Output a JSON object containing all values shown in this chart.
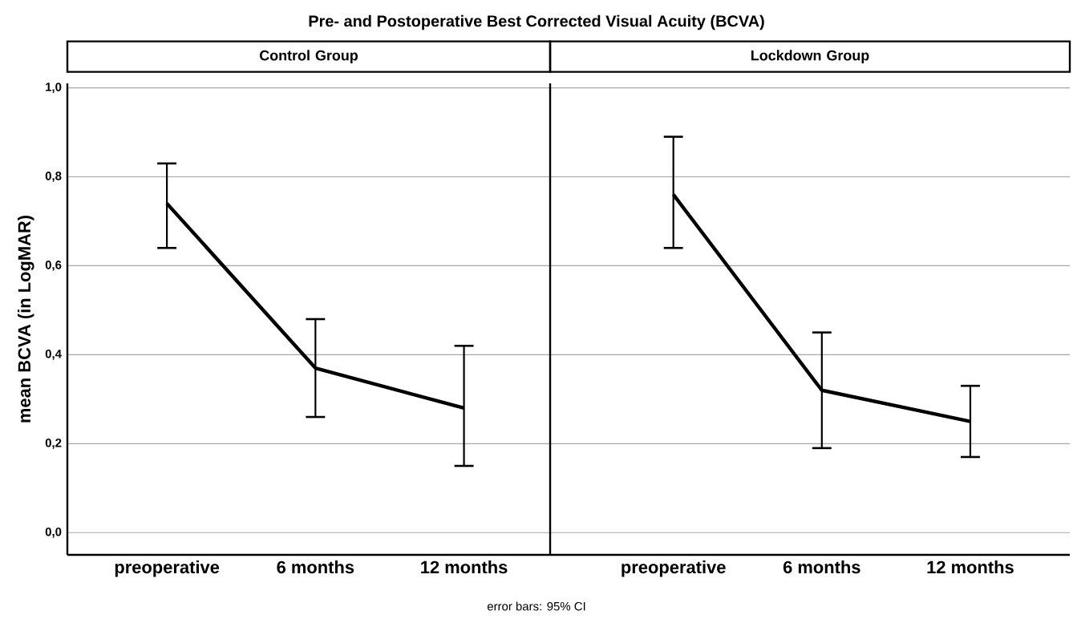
{
  "chart_data": [
    {
      "type": "line",
      "title": "Pre- and Postoperative Best Corrected Visual Acuity (BCVA)",
      "subtitle": "Control Group",
      "ylabel": "mean BCVA (in LogMAR)",
      "categories": [
        "preoperative",
        "6 months",
        "12 months"
      ],
      "series": [
        {
          "color": "#000000",
          "values": [
            0.74,
            0.37,
            0.28
          ],
          "errors": [
            [
              0.64,
              0.83
            ],
            [
              0.26,
              0.48
            ],
            [
              0.15,
              0.42
            ]
          ]
        }
      ],
      "ylim": [
        -0.05,
        1.01
      ],
      "yticks": [
        {
          "value": 0,
          "label": "0,0"
        },
        {
          "value": 0.2,
          "label": "0,2"
        },
        {
          "value": 0.4,
          "label": "0,4"
        },
        {
          "value": 0.6,
          "label": "0,6"
        },
        {
          "value": 0.8,
          "label": "0,8"
        },
        {
          "value": 1.0,
          "label": "1,0"
        }
      ],
      "grid": "y",
      "line_style": "solid",
      "annotations": [
        "error bars: 95% CI"
      ]
    },
    {
      "type": "line",
      "subtitle": "Lockdown Group",
      "categories": [
        "preoperative",
        "6 months",
        "12 months"
      ],
      "series": [
        {
          "color": "#000000",
          "values": [
            0.76,
            0.32,
            0.25
          ],
          "errors": [
            [
              0.64,
              0.89
            ],
            [
              0.19,
              0.45
            ],
            [
              0.17,
              0.33
            ]
          ]
        }
      ],
      "ylim": [
        -0.05,
        1.01
      ],
      "yticks": [
        {
          "value": 0,
          "label": null
        },
        {
          "value": 0.2,
          "label": null
        },
        {
          "value": 0.4,
          "label": null
        },
        {
          "value": 0.6,
          "label": null
        },
        {
          "value": 0.8,
          "label": null
        },
        {
          "value": 1.0,
          "label": null
        }
      ],
      "grid": "y",
      "line_style": "solid",
      "tick_labels": "x"
    }
  ]
}
